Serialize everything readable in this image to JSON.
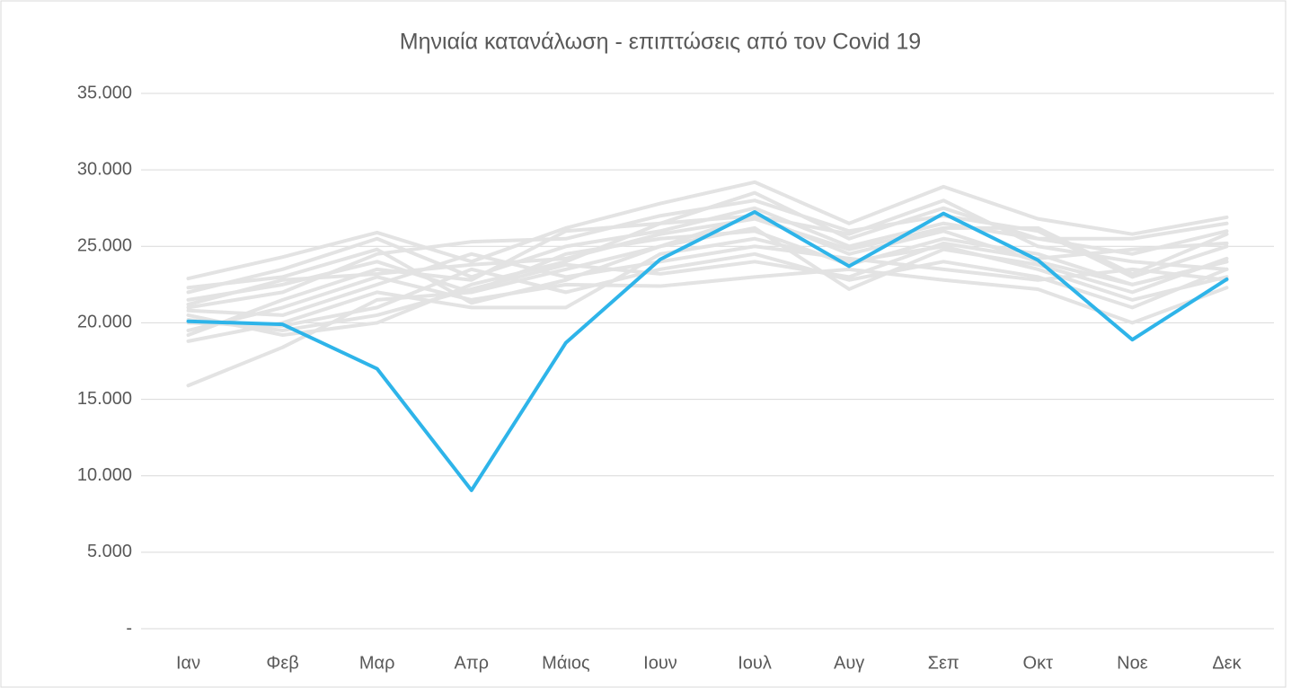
{
  "chart_data": {
    "type": "line",
    "title": "Μηνιαία κατανάλωση - επιπτώσεις από τον Covid 19",
    "categories": [
      "Ιαν",
      "Φεβ",
      "Μαρ",
      "Απρ",
      "Μάιος",
      "Ιουν",
      "Ιουλ",
      "Αυγ",
      "Σεπ",
      "Οκτ",
      "Νοε",
      "Δεκ"
    ],
    "ylim": [
      0,
      35000
    ],
    "yticks": [
      {
        "value": 0,
        "label": "-"
      },
      {
        "value": 5000,
        "label": "5.000"
      },
      {
        "value": 10000,
        "label": "10.000"
      },
      {
        "value": 15000,
        "label": "15.000"
      },
      {
        "value": 20000,
        "label": "20.000"
      },
      {
        "value": 25000,
        "label": "25.000"
      },
      {
        "value": 30000,
        "label": "30.000"
      },
      {
        "value": 35000,
        "label": "35.000"
      }
    ],
    "grid": true,
    "series": [
      {
        "color": "#e3e3e3",
        "values": [
          15900,
          18400,
          21500,
          22000,
          23500,
          25000,
          27000,
          24500,
          26000,
          24000,
          22500,
          24000
        ]
      },
      {
        "color": "#e3e3e3",
        "values": [
          22900,
          24300,
          25900,
          24000,
          26200,
          27800,
          29200,
          26500,
          28900,
          26800,
          25800,
          26900
        ]
      },
      {
        "color": "#e3e3e3",
        "values": [
          18800,
          20000,
          22000,
          21000,
          21000,
          24500,
          25500,
          24000,
          25000,
          23500,
          21500,
          23000
        ]
      },
      {
        "color": "#e3e3e3",
        "values": [
          20500,
          19200,
          20000,
          22500,
          24000,
          26500,
          28500,
          25500,
          27500,
          25500,
          24500,
          26000
        ]
      },
      {
        "color": "#e3e3e3",
        "values": [
          21000,
          22000,
          24500,
          25300,
          25500,
          27000,
          28000,
          26000,
          27000,
          26000,
          23000,
          25000
        ]
      },
      {
        "color": "#e3e3e3",
        "values": [
          19500,
          21000,
          23000,
          21500,
          22500,
          22400,
          23000,
          23500,
          22800,
          22200,
          20000,
          22300
        ]
      },
      {
        "color": "#e3e3e3",
        "values": [
          22000,
          23500,
          25500,
          23000,
          25000,
          26000,
          27500,
          25000,
          26500,
          25500,
          25500,
          26500
        ]
      },
      {
        "color": "#e3e3e3",
        "values": [
          20000,
          19800,
          21000,
          23500,
          22000,
          23500,
          24500,
          22800,
          24000,
          23000,
          21000,
          23500
        ]
      },
      {
        "color": "#e3e3e3",
        "values": [
          21500,
          22500,
          24000,
          22000,
          24500,
          25500,
          26000,
          23800,
          25500,
          24500,
          22500,
          24000
        ]
      },
      {
        "color": "#e3e3e3",
        "values": [
          20800,
          20500,
          22500,
          24500,
          23000,
          24000,
          25000,
          24200,
          23500,
          22800,
          23500,
          22800
        ]
      },
      {
        "color": "#e3e3e3",
        "values": [
          19200,
          21500,
          23500,
          22800,
          26000,
          26500,
          27000,
          25800,
          28000,
          25000,
          24000,
          23500
        ]
      },
      {
        "color": "#e3e3e3",
        "values": [
          22300,
          23000,
          24800,
          21300,
          22800,
          25000,
          26200,
          22200,
          24800,
          23800,
          22000,
          24200
        ]
      },
      {
        "color": "#e3e3e3",
        "values": [
          20200,
          19500,
          20500,
          22200,
          23800,
          23200,
          24000,
          23000,
          25200,
          24200,
          24800,
          25200
        ]
      },
      {
        "color": "#e3e3e3",
        "values": [
          21200,
          22800,
          23200,
          23800,
          24200,
          25800,
          26800,
          24800,
          26200,
          26200,
          23200,
          25800
        ]
      },
      {
        "color": "#2eb4e9",
        "values": [
          20100,
          19900,
          17000,
          9050,
          18700,
          24150,
          27250,
          23700,
          27150,
          24100,
          18900,
          22850
        ]
      }
    ]
  }
}
